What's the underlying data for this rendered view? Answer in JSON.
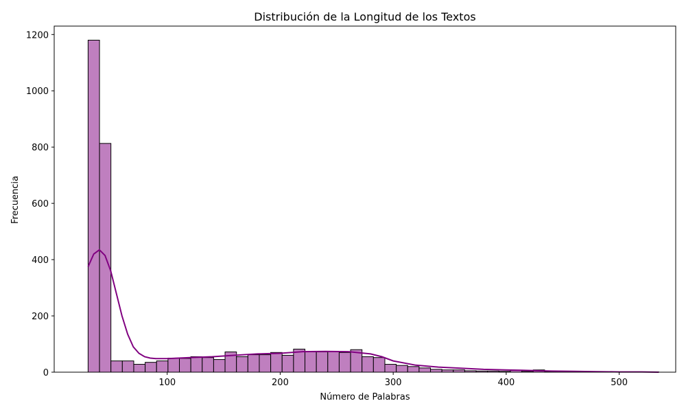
{
  "chart_data": {
    "type": "bar",
    "title": "Distribución de la Longitud de los Textos",
    "xlabel": "Número de Palabras",
    "ylabel": "Frecuencia",
    "xlim": [
      0,
      550
    ],
    "ylim": [
      0,
      1230
    ],
    "x_ticks": [
      100,
      200,
      300,
      400,
      500
    ],
    "y_ticks": [
      0,
      200,
      400,
      600,
      800,
      1000,
      1200
    ],
    "grid": false,
    "colors": {
      "bar_fill": "#bf7fbf",
      "bar_edge": "#000000",
      "kde_line": "#800080"
    },
    "bins": {
      "start": 30,
      "width": 10.1,
      "values": [
        1180,
        813,
        40,
        40,
        28,
        35,
        40,
        50,
        49,
        55,
        52,
        45,
        72,
        55,
        62,
        62,
        70,
        60,
        82,
        72,
        72,
        74,
        70,
        80,
        55,
        52,
        28,
        24,
        20,
        15,
        10,
        8,
        8,
        5,
        4,
        4,
        3,
        6,
        3,
        8,
        2,
        2,
        2,
        1,
        1,
        1,
        1,
        1,
        1,
        1
      ]
    },
    "kde": {
      "x": [
        30,
        35,
        40,
        45,
        50,
        55,
        60,
        65,
        70,
        75,
        80,
        85,
        90,
        95,
        100,
        110,
        120,
        140,
        160,
        180,
        200,
        220,
        240,
        260,
        280,
        290,
        300,
        320,
        340,
        360,
        380,
        400,
        420,
        440,
        460,
        480,
        500,
        520,
        535
      ],
      "y": [
        375,
        420,
        435,
        415,
        360,
        280,
        200,
        135,
        90,
        67,
        55,
        50,
        48,
        48,
        48,
        50,
        52,
        55,
        60,
        65,
        67,
        73,
        74,
        73,
        65,
        55,
        40,
        25,
        18,
        14,
        10,
        8,
        6,
        4,
        3,
        2,
        1,
        1,
        0
      ]
    }
  }
}
